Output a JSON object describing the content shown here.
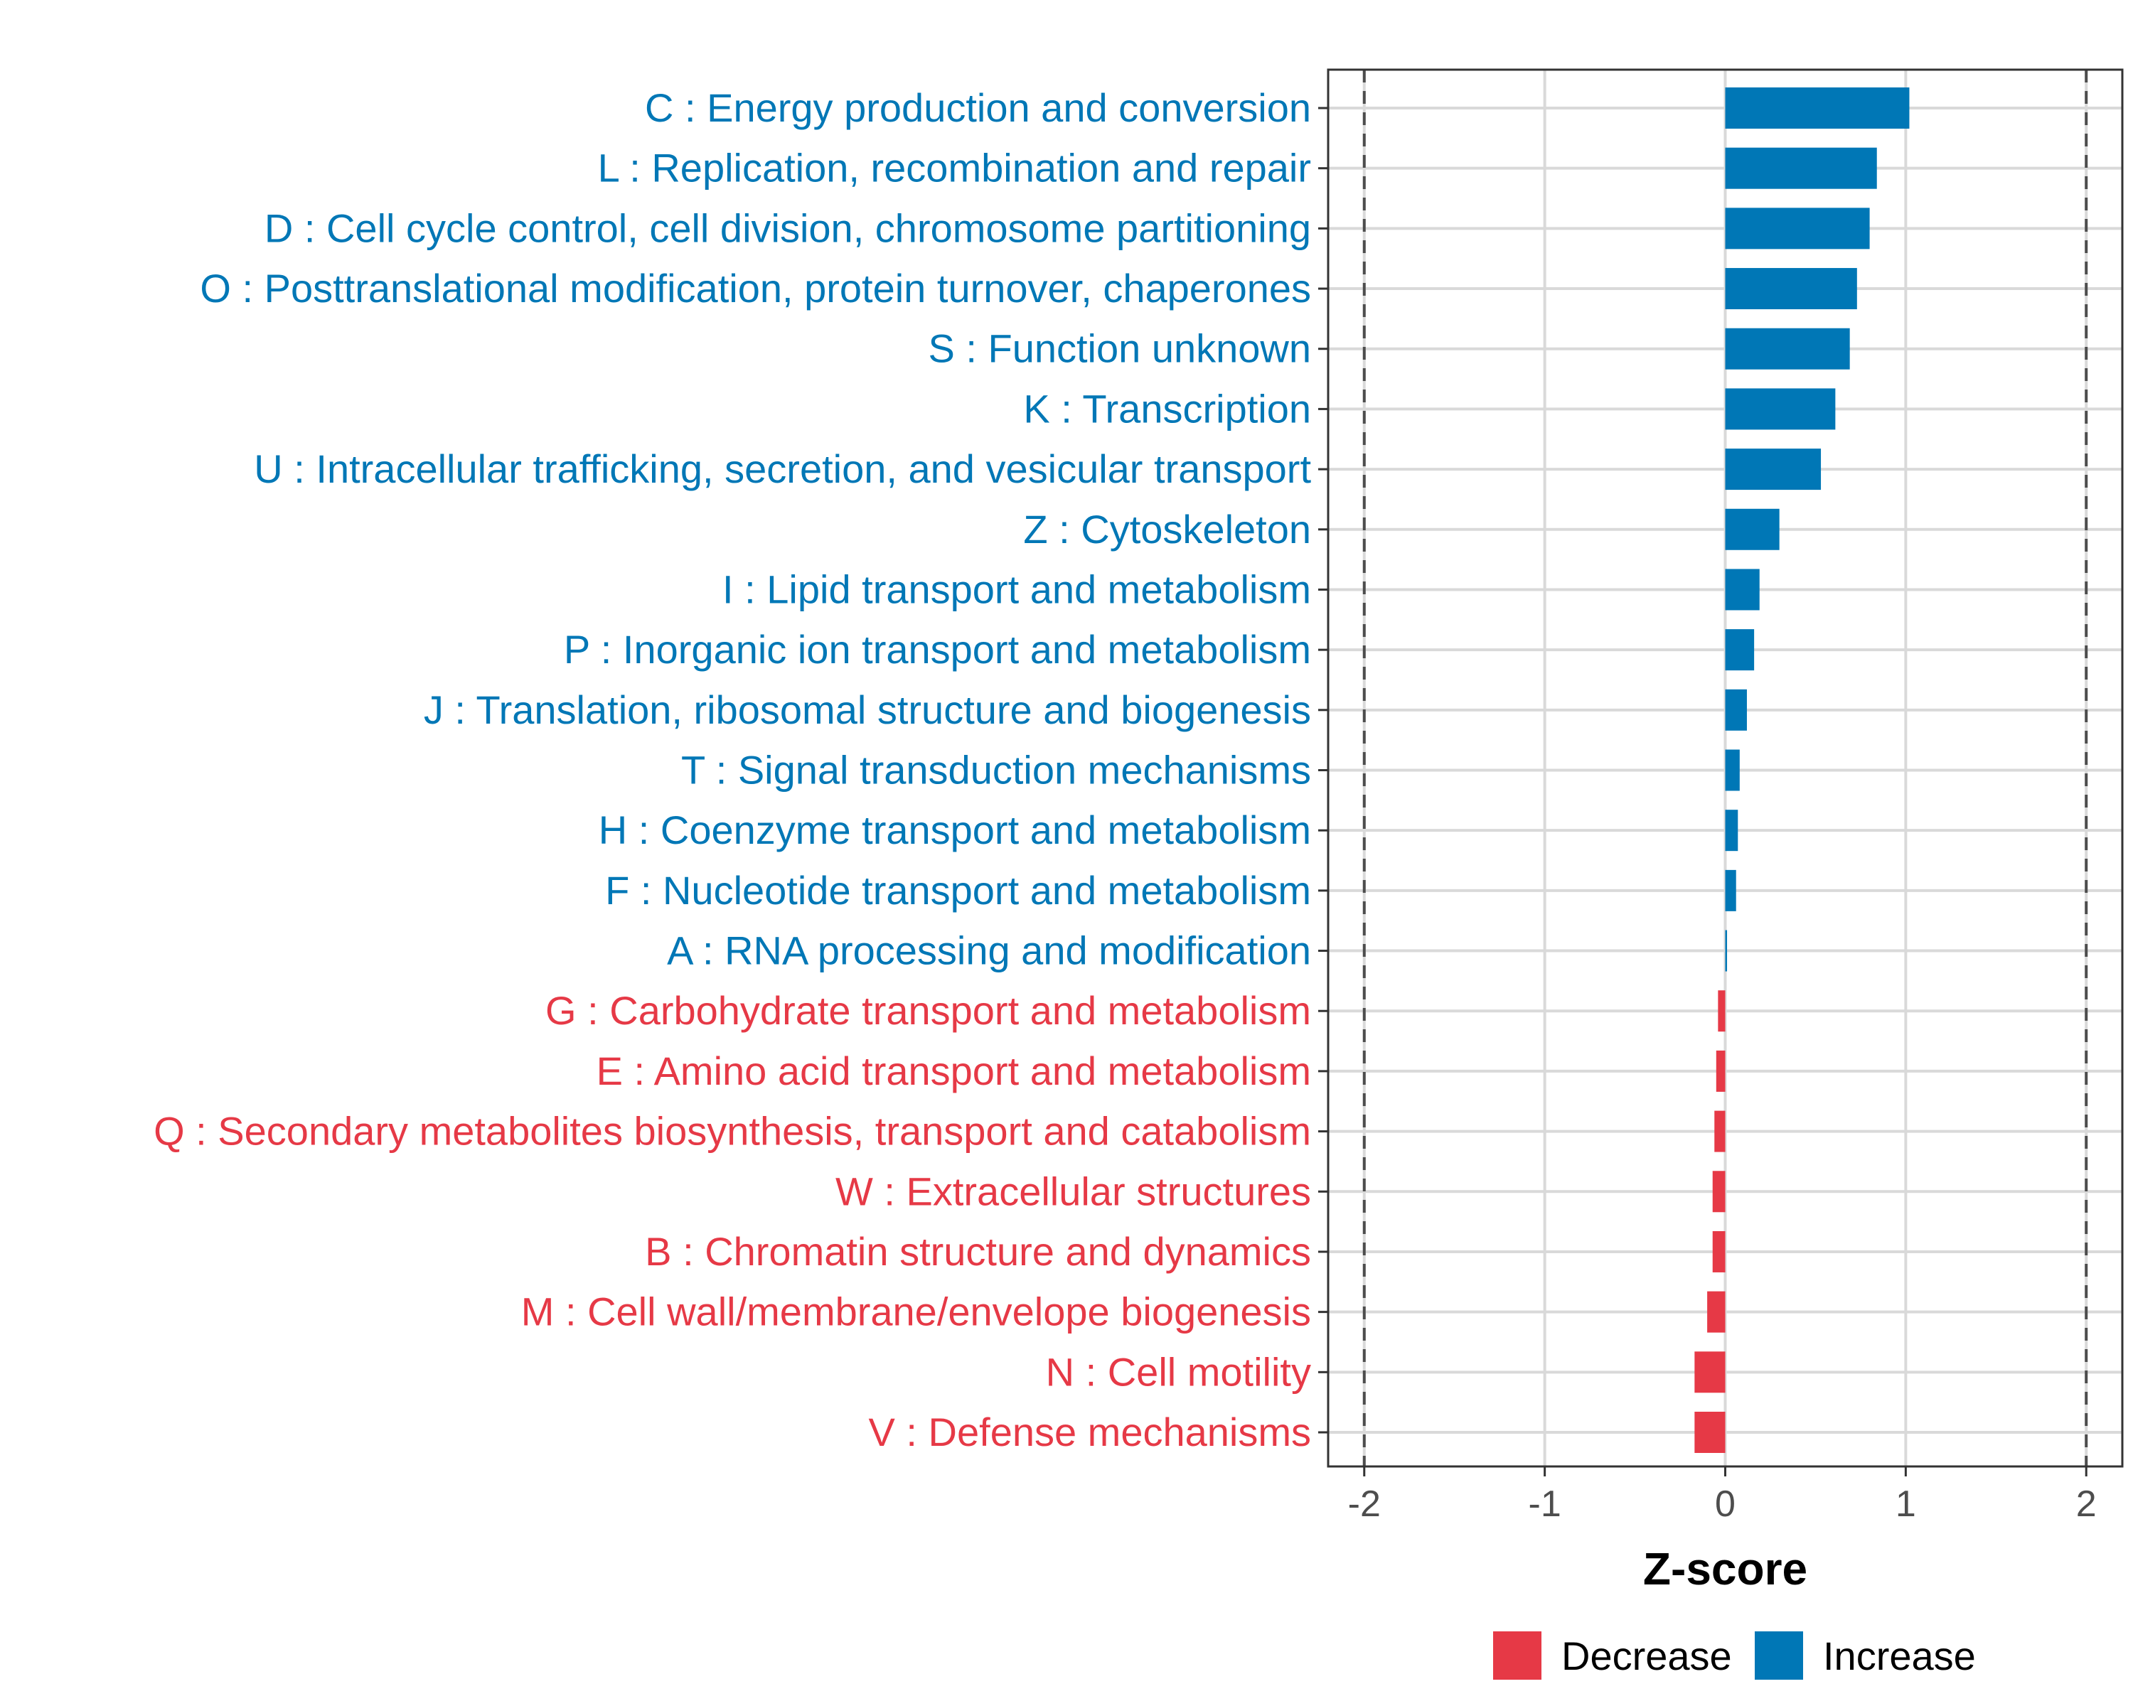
{
  "chart_data": {
    "type": "bar",
    "orientation": "horizontal",
    "title": "",
    "xlabel": "Z-score",
    "ylabel": "",
    "xlim": [
      -2.2,
      2.2
    ],
    "xticks": [
      -2,
      -1,
      0,
      1,
      2
    ],
    "xtick_labels": [
      "-2",
      "-1",
      "0",
      "1",
      "2"
    ],
    "reference_lines": [
      -2,
      2
    ],
    "grid": true,
    "colors": {
      "Decrease": "#e63946",
      "Increase": "#0077b6"
    },
    "categories": [
      "C : Energy production and conversion",
      "L : Replication, recombination and repair",
      "D : Cell cycle control, cell division, chromosome partitioning",
      "O : Posttranslational modification, protein turnover, chaperones",
      "S : Function unknown",
      "K : Transcription",
      "U : Intracellular trafficking, secretion, and vesicular transport",
      "Z : Cytoskeleton",
      "I : Lipid transport and metabolism",
      "P : Inorganic ion transport and metabolism",
      "J : Translation, ribosomal structure and biogenesis",
      "T : Signal transduction mechanisms",
      "H : Coenzyme transport and metabolism",
      "F : Nucleotide transport and metabolism",
      "A : RNA processing and modification",
      "G : Carbohydrate transport and metabolism",
      "E : Amino acid transport and metabolism",
      "Q : Secondary metabolites biosynthesis, transport and catabolism",
      "W : Extracellular structures",
      "B : Chromatin structure and dynamics",
      "M : Cell wall/membrane/envelope biogenesis",
      "N : Cell motility",
      "V : Defense mechanisms"
    ],
    "values": [
      1.02,
      0.84,
      0.8,
      0.73,
      0.69,
      0.61,
      0.53,
      0.3,
      0.19,
      0.16,
      0.12,
      0.08,
      0.07,
      0.06,
      0.01,
      -0.04,
      -0.05,
      -0.06,
      -0.07,
      -0.07,
      -0.1,
      -0.17,
      -0.17
    ],
    "groups": [
      "Increase",
      "Increase",
      "Increase",
      "Increase",
      "Increase",
      "Increase",
      "Increase",
      "Increase",
      "Increase",
      "Increase",
      "Increase",
      "Increase",
      "Increase",
      "Increase",
      "Increase",
      "Decrease",
      "Decrease",
      "Decrease",
      "Decrease",
      "Decrease",
      "Decrease",
      "Decrease",
      "Decrease"
    ],
    "legend": {
      "position": "bottom",
      "entries": [
        "Decrease",
        "Increase"
      ]
    }
  }
}
